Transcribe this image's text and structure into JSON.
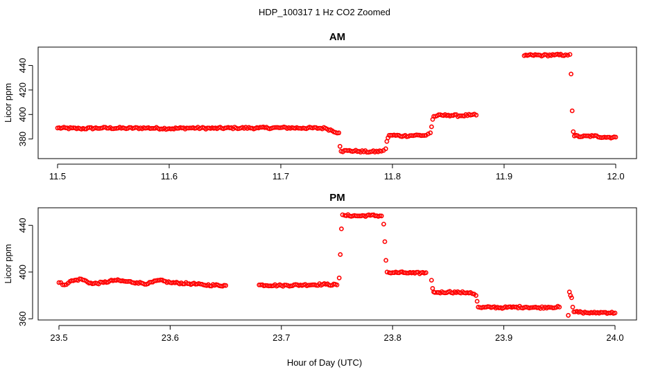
{
  "figure": {
    "title": "HDP_100317  1 Hz CO2 Zoomed",
    "xlabel": "Hour of Day (UTC)"
  },
  "chart_data": [
    {
      "type": "scatter",
      "title": "AM",
      "ylabel": "Licor ppm",
      "xlim": [
        11.5,
        12.0
      ],
      "ylim": [
        364,
        455
      ],
      "xticks": [
        11.5,
        11.6,
        11.7,
        11.8,
        11.9,
        12.0
      ],
      "xtick_labels": [
        "11.5",
        "11.6",
        "11.7",
        "11.8",
        "11.9",
        "12.0"
      ],
      "yticks": [
        380,
        400,
        420,
        440
      ],
      "ytick_labels": [
        "380",
        "400",
        "420",
        "440"
      ],
      "marker_color": "#ff0000",
      "marker": "open-circle",
      "grid": false,
      "series": [
        {
          "x": [
            11.5,
            11.52,
            11.54,
            11.56,
            11.58,
            11.6,
            11.62,
            11.64,
            11.66,
            11.68,
            11.7,
            11.72,
            11.74,
            11.752,
            11.753,
            11.754,
            11.76,
            11.77,
            11.78,
            11.79,
            11.794,
            11.795,
            11.796,
            11.797,
            11.8,
            11.81,
            11.82,
            11.83,
            11.834,
            11.835,
            11.836,
            11.837,
            11.84,
            11.85,
            11.86,
            11.87,
            11.875,
            11.918,
            11.925,
            11.935,
            11.945,
            11.955,
            11.959,
            11.96,
            11.961,
            11.962,
            11.963,
            11.97,
            11.98,
            11.99,
            12.0
          ],
          "y": [
            389,
            388.5,
            389,
            388.8,
            389,
            388.5,
            389,
            388.7,
            389,
            389,
            389.2,
            389,
            388.8,
            385,
            374,
            370,
            370.5,
            370,
            369.5,
            370,
            372,
            378,
            381,
            383,
            383,
            382.5,
            383,
            383,
            385,
            390,
            396,
            398.5,
            399,
            399.5,
            399,
            399.5,
            399.5,
            448,
            448.5,
            448.3,
            448.5,
            448.7,
            449,
            433,
            403,
            386,
            382.5,
            382,
            382.5,
            381.5,
            381.5
          ]
        }
      ]
    },
    {
      "type": "scatter",
      "title": "PM",
      "ylabel": "Licor ppm",
      "xlim": [
        23.5,
        24.0
      ],
      "ylim": [
        359,
        455
      ],
      "xticks": [
        23.5,
        23.6,
        23.7,
        23.8,
        23.9,
        24.0
      ],
      "xtick_labels": [
        "23.5",
        "23.6",
        "23.7",
        "23.8",
        "23.9",
        "24.0"
      ],
      "yticks": [
        360,
        400,
        440
      ],
      "ytick_labels": [
        "360",
        "400",
        "440"
      ],
      "marker_color": "#ff0000",
      "marker": "open-circle",
      "grid": false,
      "series": [
        {
          "x": [
            23.5,
            23.505,
            23.51,
            23.52,
            23.53,
            23.54,
            23.55,
            23.56,
            23.57,
            23.58,
            23.59,
            23.6,
            23.62,
            23.63,
            23.65,
            23.68,
            23.7,
            23.72,
            23.74,
            23.75,
            23.752,
            23.753,
            23.754,
            23.755,
            23.757,
            23.77,
            23.78,
            23.79,
            23.792,
            23.793,
            23.794,
            23.795,
            23.797,
            23.8,
            23.81,
            23.82,
            23.83,
            23.835,
            23.836,
            23.837,
            23.838,
            23.84,
            23.85,
            23.86,
            23.87,
            23.875,
            23.876,
            23.877,
            23.88,
            23.89,
            23.9,
            23.91,
            23.92,
            23.93,
            23.94,
            23.95,
            23.958,
            23.959,
            23.96,
            23.961,
            23.962,
            23.963,
            23.97,
            23.98,
            23.99,
            24.0
          ],
          "y": [
            391,
            389,
            392,
            394,
            390,
            391,
            393,
            392,
            391,
            390,
            393,
            391,
            390,
            389,
            388.5,
            389,
            388.5,
            389,
            389.5,
            389,
            395,
            415,
            437,
            449,
            448.5,
            448,
            448.5,
            448,
            441,
            426,
            410,
            400,
            399.5,
            399.5,
            399.5,
            399,
            399.5,
            393,
            386,
            383,
            382.5,
            382.5,
            383,
            382.5,
            382.5,
            380,
            375,
            370,
            369.5,
            370,
            369.5,
            370,
            370,
            369.5,
            370,
            370,
            363,
            383,
            380,
            378,
            370,
            366,
            365.5,
            365,
            365.5,
            365
          ]
        }
      ]
    }
  ]
}
